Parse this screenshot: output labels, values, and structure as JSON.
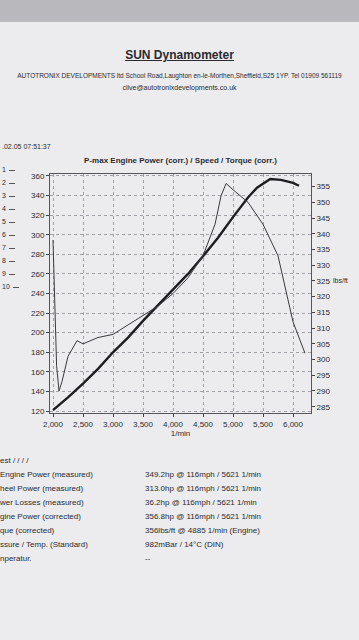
{
  "header": {
    "title": "SUN Dynamometer",
    "address": "AUTOTRONIX DEVELOPMENTS ltd School Road,Laughton en-le-Morthen,Sheffield,S25 1YP. Tel 01909 561119",
    "email": "clive@autotronixdevelopments.co.uk",
    "timestamp": ".02.05 07:51:37",
    "slots": [
      "1",
      "2",
      "3",
      "4",
      "5",
      "6",
      "7",
      "8",
      "9",
      "10"
    ]
  },
  "chart_data": {
    "type": "line",
    "title": "P-max Engine Power (corr.) / Speed / Torque (corr.)",
    "xlabel": "1/min",
    "y2label": "lbs/ft",
    "grid": true,
    "xlim": [
      1950,
      6300
    ],
    "xticks": [
      {
        "value": 2000,
        "label": "2,000"
      },
      {
        "value": 2500,
        "label": "2,500"
      },
      {
        "value": 3000,
        "label": "3,000"
      },
      {
        "value": 3500,
        "label": "3,500"
      },
      {
        "value": 4000,
        "label": "4,000"
      },
      {
        "value": 4500,
        "label": "4,500"
      },
      {
        "value": 5000,
        "label": "5,000"
      },
      {
        "value": 5500,
        "label": "5,500"
      },
      {
        "value": 6000,
        "label": "6,000"
      }
    ],
    "ylim": [
      118,
      362
    ],
    "yticks": [
      120,
      140,
      160,
      180,
      200,
      220,
      240,
      260,
      280,
      300,
      320,
      340,
      360
    ],
    "y2lim": [
      283,
      359
    ],
    "y2ticks": [
      285,
      290,
      295,
      300,
      305,
      310,
      315,
      320,
      325,
      330,
      335,
      340,
      345,
      350,
      355
    ],
    "series": [
      {
        "color": "#1e1e22",
        "line_style": "solid",
        "axis": "y",
        "x": [
          2000,
          2100,
          2250,
          2500,
          2750,
          3000,
          3250,
          3500,
          3750,
          4000,
          4250,
          4500,
          4750,
          5000,
          5250,
          5400,
          5621,
          5800,
          6000,
          6100
        ],
        "values": [
          121,
          126,
          134,
          148,
          163,
          180,
          195,
          212,
          228,
          243,
          260,
          278,
          297,
          318,
          338,
          348,
          356.8,
          356,
          353,
          350
        ]
      },
      {
        "color": "#3a3a40",
        "line_style": "solid",
        "axis": "y2",
        "x": [
          2000,
          2030,
          2060,
          2100,
          2150,
          2250,
          2400,
          2500,
          2750,
          3000,
          3250,
          3500,
          3750,
          4000,
          4250,
          4500,
          4700,
          4800,
          4885,
          5000,
          5250,
          5500,
          5750,
          6000,
          6100,
          6200
        ],
        "values": [
          338,
          318,
          298,
          290,
          293,
          301,
          306,
          305,
          307,
          308,
          311,
          314,
          317,
          321,
          326,
          333,
          343,
          352,
          356,
          354,
          350,
          343,
          333,
          312,
          307,
          302
        ]
      }
    ]
  },
  "results": [
    {
      "label": "est / / / /"
    },
    {
      "label": "Engine Power (measured)",
      "value": "349.2hp @ 116mph / 5621 1/min"
    },
    {
      "label": "heel Power (measured)",
      "value": "313.0hp @ 116mph / 5621 1/min"
    },
    {
      "label": "wer Losses (measured)",
      "value": "36.2hp @ 116mph / 5621 1/min"
    },
    {
      "label": "gine Power (corrected)",
      "value": "356.8hp @ 116mph / 5621 1/min"
    },
    {
      "label": "que (corrected)",
      "value": "356lbs/ft @ 4885 1/min (Engine)"
    },
    {
      "label": "ssure / Temp. (Standard)",
      "value": "982mBar / 14°C (DIN)"
    },
    {
      "label": "nperatur.",
      "value": "--"
    }
  ]
}
